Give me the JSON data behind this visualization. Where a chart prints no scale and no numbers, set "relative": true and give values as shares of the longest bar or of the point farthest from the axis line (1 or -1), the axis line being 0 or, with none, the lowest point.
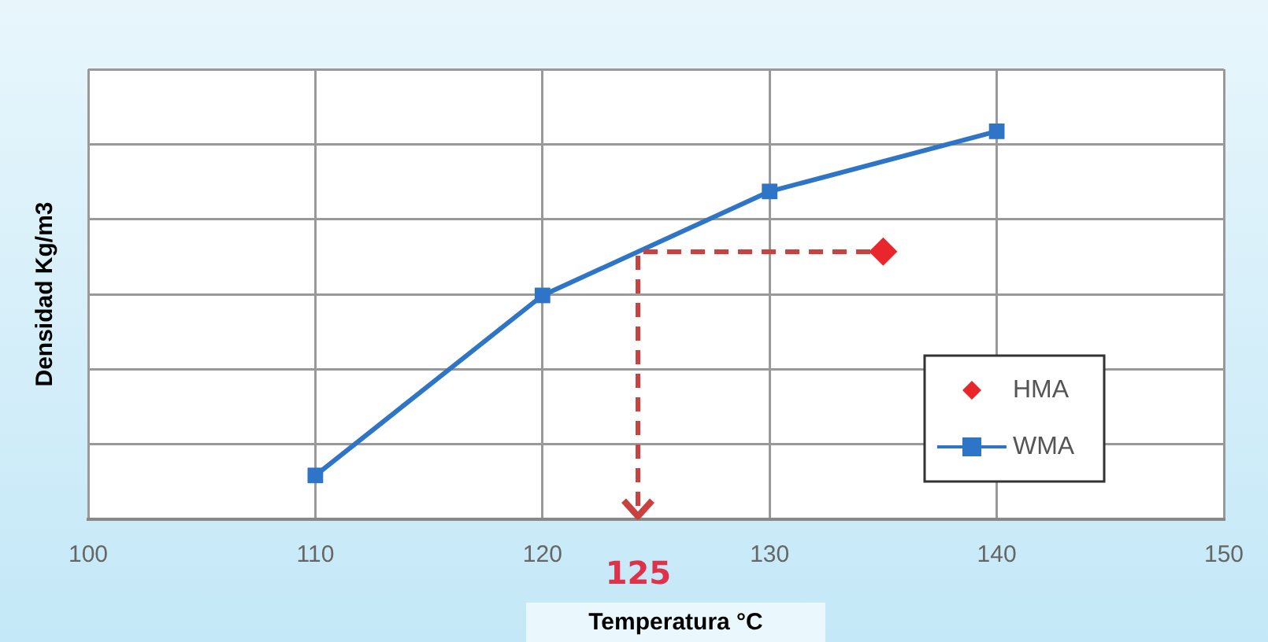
{
  "chart_data": {
    "type": "line",
    "xlabel": "Temperatura °C",
    "ylabel": "Densidad Kg/m3",
    "relative": true,
    "xlim": [
      100,
      150
    ],
    "xticks": [
      100,
      110,
      120,
      130,
      140,
      150
    ],
    "grid": true,
    "legend": "bottom right",
    "series": [
      {
        "name": "HMA",
        "type": "scatter",
        "marker": "diamond",
        "color": "#e8262b",
        "x": [
          135
        ],
        "values": [
          0.69
        ]
      },
      {
        "name": "WMA",
        "marker": "square",
        "color": "#2e75c8",
        "x": [
          110,
          120,
          130,
          140
        ],
        "values": [
          0.113,
          0.577,
          0.845,
          1.0
        ]
      }
    ],
    "annotations": [
      "125"
    ]
  }
}
